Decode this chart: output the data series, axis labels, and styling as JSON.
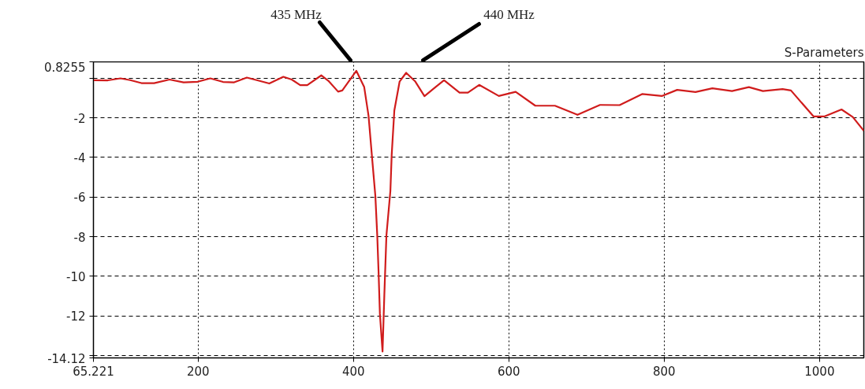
{
  "chart_data": {
    "type": "line",
    "title": "S-Parameters",
    "xlim": [
      65.221,
      1057
    ],
    "ylim": [
      -14.12,
      0.8255
    ],
    "xticks": [
      65.221,
      200,
      400,
      600,
      800,
      1000
    ],
    "yticks": [
      0.8255,
      {
        "value": 0,
        "label": null
      },
      -2,
      -4,
      -6,
      -8,
      -10,
      -12,
      {
        "value": -14,
        "label": null
      },
      -14.12
    ],
    "grid": true,
    "line_style": "solid",
    "marker": "none",
    "annotations": [
      "435 MHz",
      "440 MHz"
    ],
    "series": [
      {
        "color": "#d01c1c",
        "x": [
          65.221,
          83.7,
          100,
          112.6,
          127,
          143.3,
          163.2,
          181.3,
          199.4,
          215.7,
          232,
          246.4,
          262.7,
          275.4,
          291.6,
          309.7,
          320.5,
          331.4,
          340.5,
          358.5,
          367.6,
          380.2,
          385.6,
          403.7,
          413.8,
          419.4,
          423.9,
          428.2,
          430.6,
          432.3,
          434,
          437.4,
          439.7,
          442.4,
          447.5,
          449.2,
          452.6,
          459.4,
          467.8,
          479.6,
          491.4,
          504,
          516.6,
          536.5,
          547.3,
          561.8,
          587.1,
          608.8,
          634.1,
          659.4,
          688.4,
          717.3,
          742.6,
          771.6,
          796.9,
          816.7,
          840.3,
          862,
          887.3,
          909,
          927.1,
          952.4,
          963.2,
          992.2,
          1006.6,
          1028.3,
          1042.8,
          1057
        ],
        "values": [
          -0.1,
          -0.11,
          -0.01,
          -0.1,
          -0.25,
          -0.25,
          -0.07,
          -0.21,
          -0.18,
          -0.01,
          -0.19,
          -0.21,
          0.03,
          -0.1,
          -0.27,
          0.07,
          -0.07,
          -0.35,
          -0.35,
          0.14,
          -0.13,
          -0.68,
          -0.62,
          0.37,
          -0.45,
          -1.9,
          -4.0,
          -5.97,
          -7.94,
          -9.79,
          -11.89,
          -13.8,
          -10.97,
          -7.94,
          -5.7,
          -3.87,
          -1.63,
          -0.17,
          0.27,
          -0.17,
          -0.91,
          -0.5,
          -0.1,
          -0.73,
          -0.73,
          -0.34,
          -0.9,
          -0.69,
          -1.39,
          -1.39,
          -1.85,
          -1.35,
          -1.36,
          -0.8,
          -0.9,
          -0.59,
          -0.7,
          -0.51,
          -0.65,
          -0.45,
          -0.65,
          -0.55,
          -0.62,
          -1.93,
          -1.93,
          -1.58,
          -1.96,
          -2.66
        ]
      }
    ]
  }
}
